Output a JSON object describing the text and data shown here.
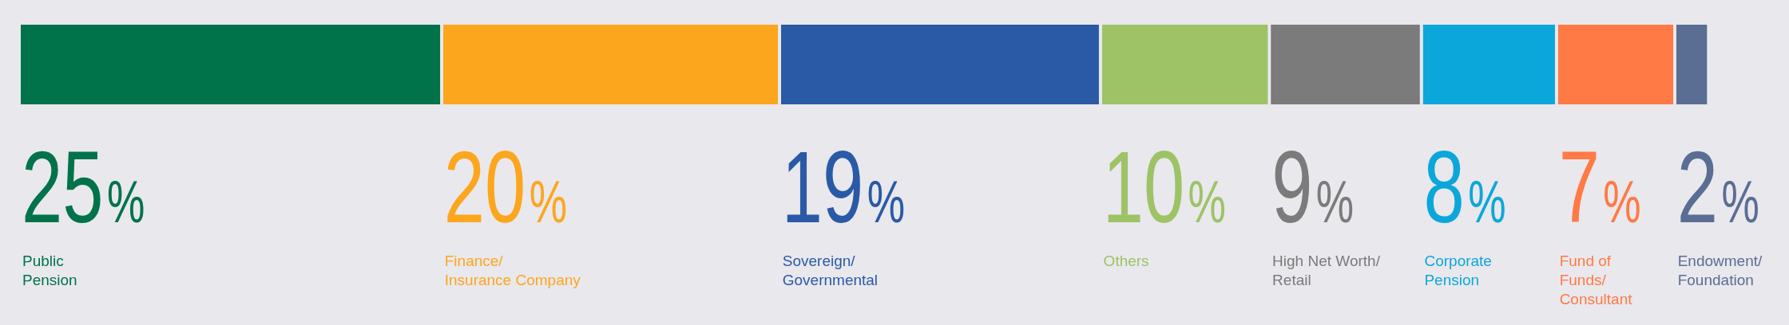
{
  "chart_data": {
    "type": "bar",
    "orientation": "horizontal",
    "stacked": true,
    "categories": [
      null
    ],
    "tick_labels": false,
    "series": [
      {
        "name": "Public\nPension",
        "color": "#00734a",
        "values": [
          25
        ],
        "value_labels": [
          "25%"
        ]
      },
      {
        "name": "Finance/\nInsurance Company",
        "color": "#fca61e",
        "values": [
          20
        ],
        "value_labels": [
          "20%"
        ]
      },
      {
        "name": "Sovereign/\nGovernmental",
        "color": "#2a5aa6",
        "values": [
          19
        ],
        "value_labels": [
          "19%"
        ]
      },
      {
        "name": "Others",
        "color": "#9dc366",
        "values": [
          10
        ],
        "value_labels": [
          "10%"
        ]
      },
      {
        "name": "High Net Worth/\nRetail",
        "color": "#7b7b7b",
        "values": [
          9
        ],
        "value_labels": [
          "9%"
        ]
      },
      {
        "name": "Corporate\nPension",
        "color": "#0ca7da",
        "values": [
          8
        ],
        "value_labels": [
          "8%"
        ]
      },
      {
        "name": "Fund of\nFunds/\nConsultant",
        "color": "#ff7a45",
        "values": [
          7
        ],
        "value_labels": [
          "7%"
        ]
      },
      {
        "name": "Endowment/\nFoundation",
        "color": "#5a6e94",
        "values": [
          2
        ],
        "value_labels": [
          "2%"
        ]
      }
    ]
  }
}
